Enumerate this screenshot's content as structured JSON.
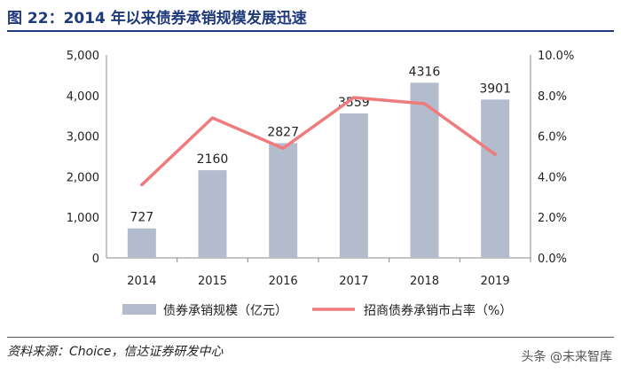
{
  "header": {
    "title": "图 22：2014 年以来债券承销规模发展迅速"
  },
  "footer": {
    "source": "资料来源：Choice，信达证券研发中心",
    "watermark": "头条 @未来智库"
  },
  "chart_data": {
    "type": "bar",
    "categories": [
      "2014",
      "2015",
      "2016",
      "2017",
      "2018",
      "2019"
    ],
    "series": [
      {
        "name": "债券承销规模（亿元）",
        "type": "bar",
        "axis": "left",
        "values": [
          727,
          2160,
          2827,
          3559,
          4316,
          3901
        ],
        "color": "#b3bccc"
      },
      {
        "name": "招商债券承销市占率（%）",
        "type": "line",
        "axis": "right",
        "values": [
          3.6,
          6.9,
          5.4,
          7.9,
          7.6,
          5.1
        ],
        "color": "#f07b7d"
      }
    ],
    "data_labels": [
      "727",
      "2160",
      "2827",
      "3559",
      "4316",
      "3901"
    ],
    "y_left": {
      "min": 0,
      "max": 5000,
      "ticks": [
        "0",
        "1,000",
        "2,000",
        "3,000",
        "4,000",
        "5,000"
      ]
    },
    "y_right": {
      "min": 0,
      "max": 10,
      "ticks": [
        "0.0%",
        "2.0%",
        "4.0%",
        "6.0%",
        "8.0%",
        "10.0%"
      ]
    },
    "grid": false,
    "legend_position": "bottom"
  }
}
